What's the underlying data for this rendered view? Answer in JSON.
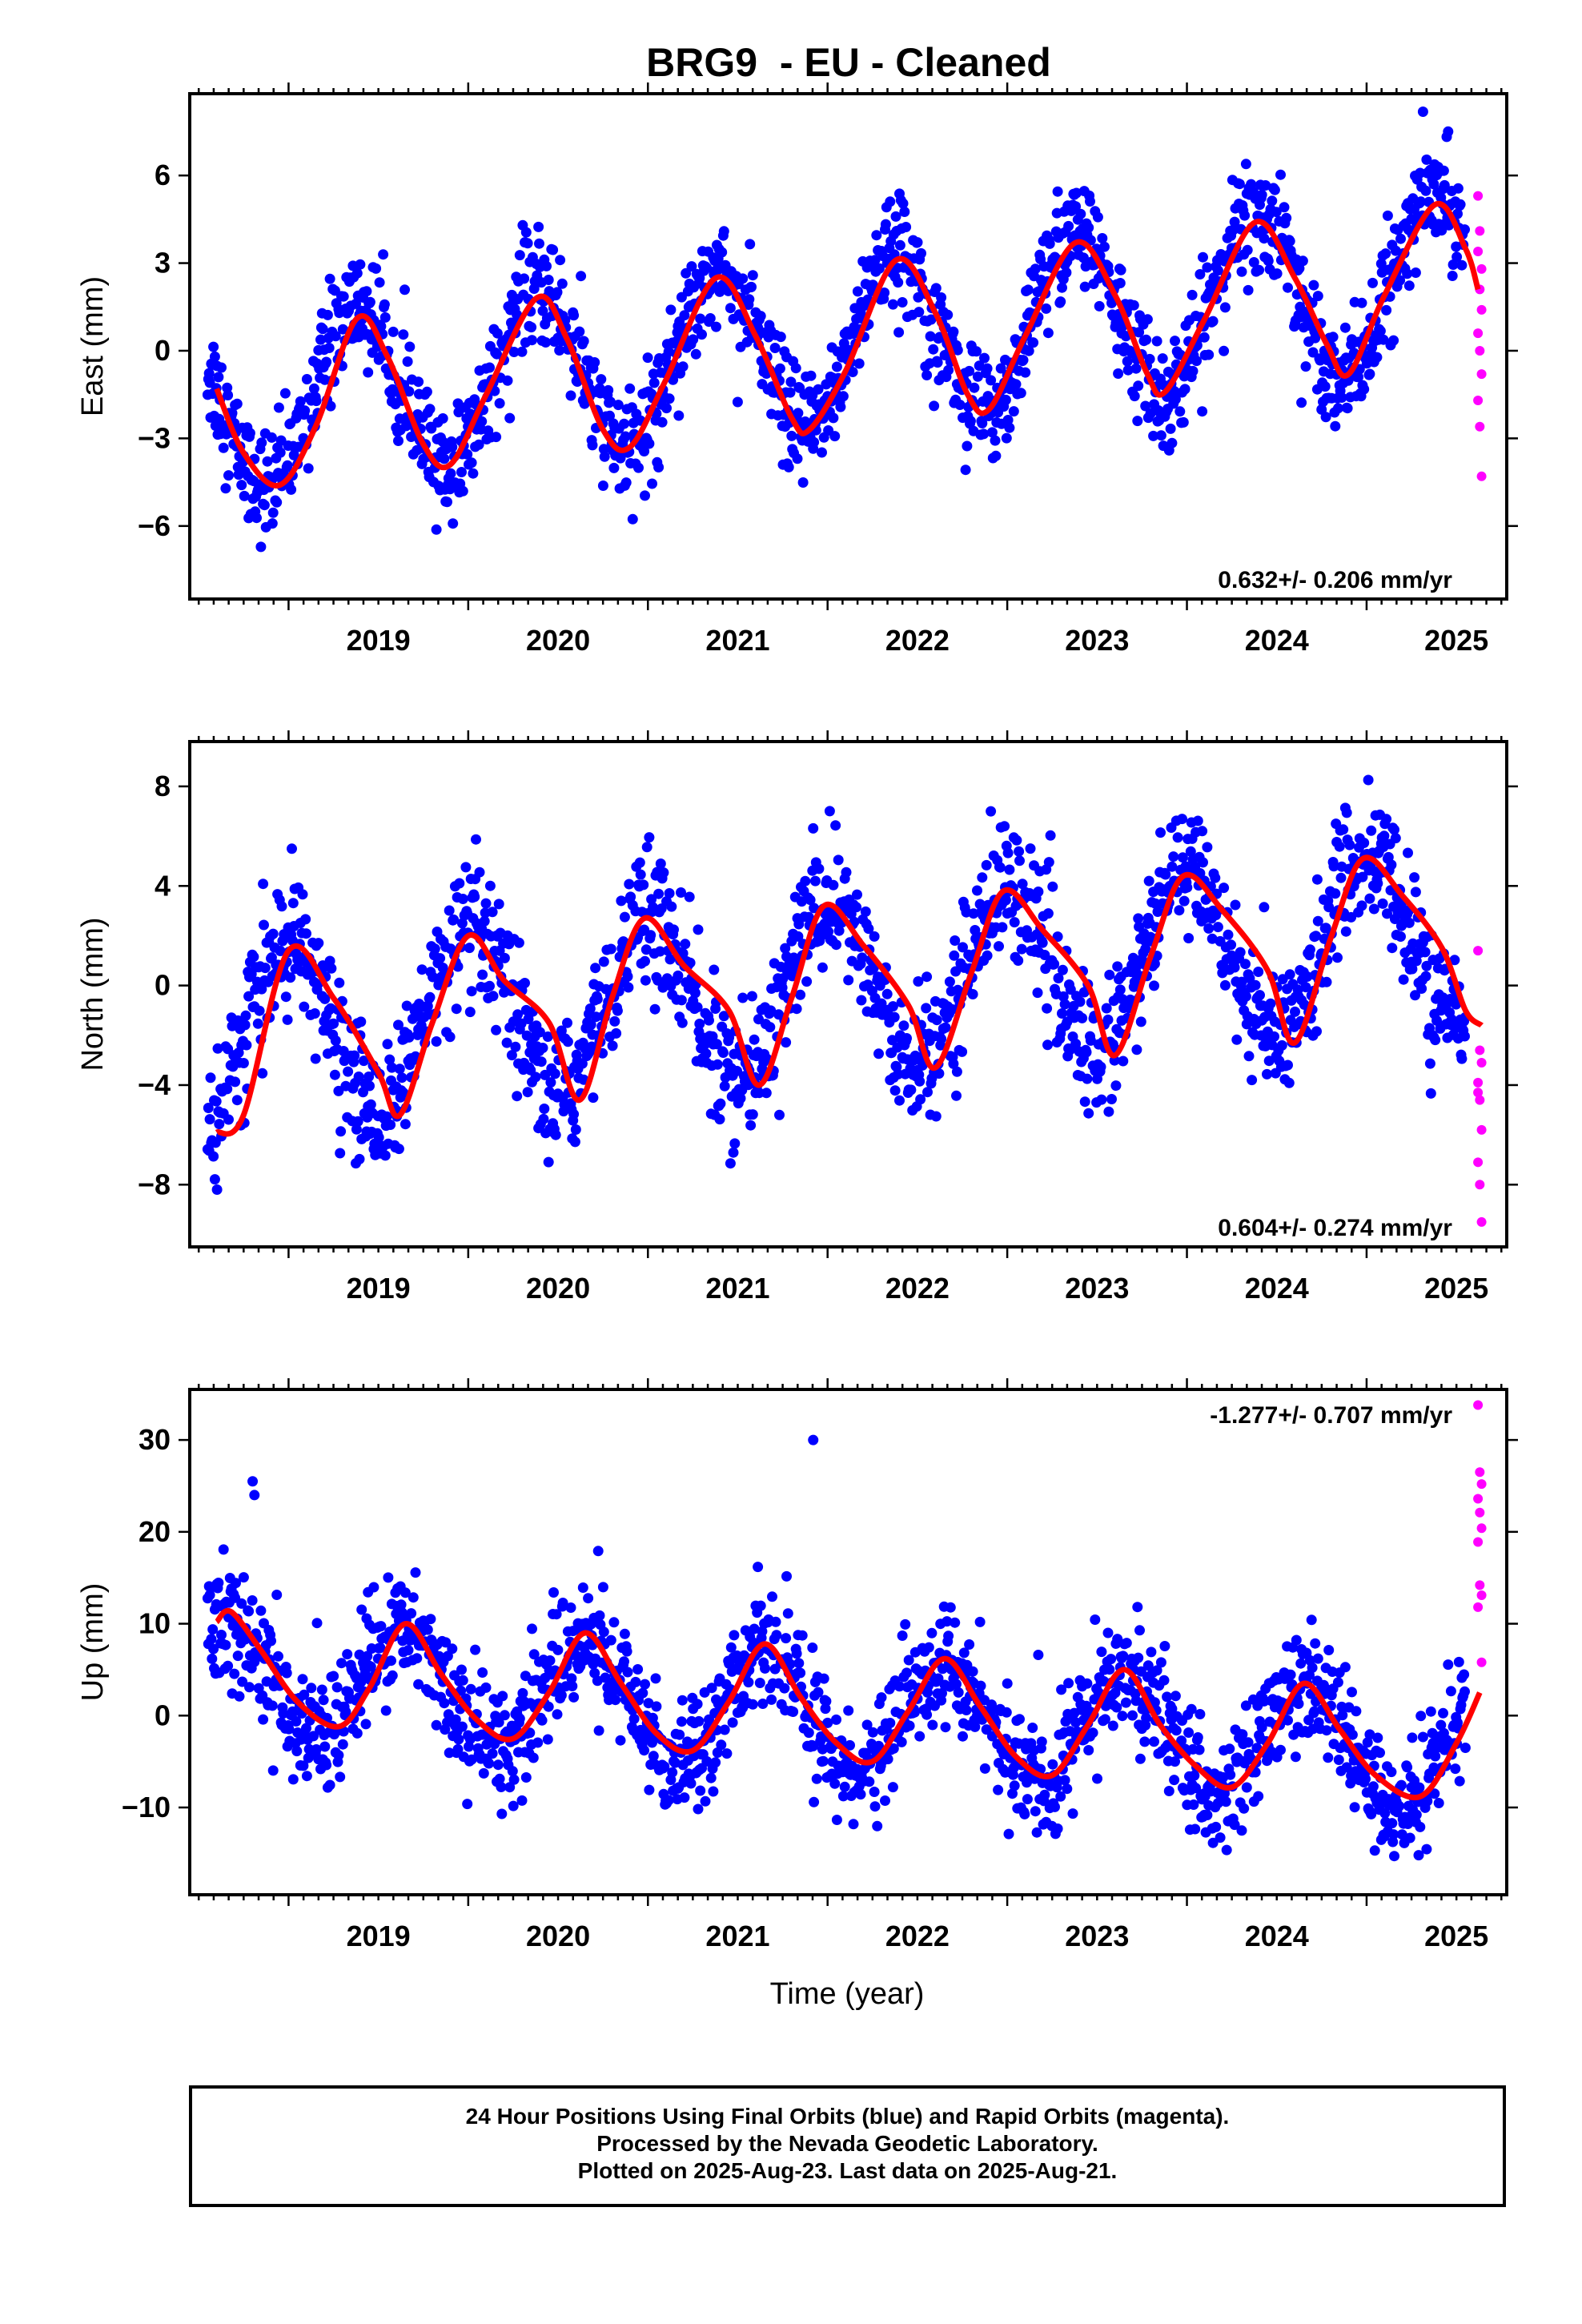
{
  "title": "BRG9  - EU - Cleaned",
  "xlabel": "Time (year)",
  "caption": [
    "24 Hour Positions Using Final Orbits (blue) and Rapid Orbits (magenta).",
    "Processed by the Nevada Geodetic Laboratory.",
    "Plotted on 2025-Aug-23. Last data on 2025-Aug-21."
  ],
  "colors": {
    "final": "#0000ff",
    "rapid": "#ff00ff",
    "model": "#ff0000",
    "axis": "#000000"
  },
  "chart_data": [
    {
      "type": "scatter",
      "panel": "east",
      "ylabel": "East (mm)",
      "xlim": [
        2018.45,
        2025.78
      ],
      "ylim": [
        -8.5,
        8.8
      ],
      "xticks": [
        2019,
        2020,
        2021,
        2022,
        2023,
        2024,
        2025
      ],
      "yticks": [
        -6,
        -3,
        0,
        3,
        6
      ],
      "rate_label": "0.632+/- 0.206 mm/yr",
      "rate_label_pos": "bottom-right",
      "series": [
        {
          "role": "final",
          "seasonal": {
            "amplitude": 2.9,
            "phase_peak": 0.38,
            "offset": -1.95,
            "rate": 0.632,
            "ref_year": 2018.5,
            "scatter_sd": 0.95,
            "start": 2018.55,
            "end": 2025.55,
            "n": 1750
          }
        },
        {
          "role": "rapid",
          "points": [
            [
              2025.62,
              5.3
            ],
            [
              2025.63,
              4.1
            ],
            [
              2025.62,
              3.4
            ],
            [
              2025.64,
              2.8
            ],
            [
              2025.63,
              2.1
            ],
            [
              2025.64,
              1.4
            ],
            [
              2025.62,
              0.6
            ],
            [
              2025.63,
              0.0
            ],
            [
              2025.64,
              -0.8
            ],
            [
              2025.62,
              -1.7
            ],
            [
              2025.63,
              -2.6
            ],
            [
              2025.64,
              -4.3
            ]
          ]
        }
      ],
      "model_curve": [
        [
          2018.6,
          -1.3
        ],
        [
          2018.75,
          -3.5
        ],
        [
          2018.95,
          -4.6
        ],
        [
          2019.15,
          -2.6
        ],
        [
          2019.38,
          1.1
        ],
        [
          2019.55,
          -0.2
        ],
        [
          2019.75,
          -3.2
        ],
        [
          2019.9,
          -3.9
        ],
        [
          2020.1,
          -1.5
        ],
        [
          2020.38,
          1.8
        ],
        [
          2020.55,
          0.4
        ],
        [
          2020.75,
          -2.7
        ],
        [
          2020.9,
          -3.3
        ],
        [
          2021.1,
          -1.0
        ],
        [
          2021.38,
          2.5
        ],
        [
          2021.6,
          0.5
        ],
        [
          2021.8,
          -2.3
        ],
        [
          2021.9,
          -2.7
        ],
        [
          2022.1,
          -0.7
        ],
        [
          2022.38,
          3.1
        ],
        [
          2022.6,
          1.3
        ],
        [
          2022.78,
          -1.5
        ],
        [
          2022.9,
          -2.0
        ],
        [
          2023.1,
          0.5
        ],
        [
          2023.38,
          3.7
        ],
        [
          2023.6,
          1.9
        ],
        [
          2023.78,
          -0.8
        ],
        [
          2023.88,
          -1.4
        ],
        [
          2024.1,
          1.1
        ],
        [
          2024.38,
          4.4
        ],
        [
          2024.6,
          2.5
        ],
        [
          2024.78,
          0.2
        ],
        [
          2024.9,
          -0.8
        ],
        [
          2025.1,
          1.9
        ],
        [
          2025.38,
          5.0
        ],
        [
          2025.55,
          3.5
        ],
        [
          2025.62,
          2.1
        ]
      ]
    },
    {
      "type": "scatter",
      "panel": "north",
      "ylabel": "North (mm)",
      "xlim": [
        2018.45,
        2025.78
      ],
      "ylim": [
        -10.5,
        9.8
      ],
      "xticks": [
        2019,
        2020,
        2021,
        2022,
        2023,
        2024,
        2025
      ],
      "yticks": [
        -8,
        -4,
        0,
        4,
        8
      ],
      "rate_label": "0.604+/- 0.274 mm/yr",
      "rate_label_pos": "bottom-right",
      "series": [
        {
          "role": "final",
          "seasonal": {
            "amplitude": 3.4,
            "phase_peak": 0.0,
            "offset": -2.2,
            "rate": 0.604,
            "ref_year": 2018.5,
            "scatter_sd": 1.35,
            "start": 2018.55,
            "end": 2025.55,
            "n": 1750
          }
        },
        {
          "role": "rapid",
          "points": [
            [
              2025.62,
              1.4
            ],
            [
              2025.63,
              -2.6
            ],
            [
              2025.64,
              -3.1
            ],
            [
              2025.62,
              -3.9
            ],
            [
              2025.63,
              -4.6
            ],
            [
              2025.64,
              -5.8
            ],
            [
              2025.62,
              -7.1
            ],
            [
              2025.63,
              -8.0
            ],
            [
              2025.64,
              -9.5
            ],
            [
              2025.62,
              -4.3
            ]
          ]
        }
      ],
      "model_curve": [
        [
          2018.6,
          -5.9
        ],
        [
          2018.75,
          -5.2
        ],
        [
          2019.0,
          1.4
        ],
        [
          2019.25,
          -0.5
        ],
        [
          2019.5,
          -3.5
        ],
        [
          2019.62,
          -5.2
        ],
        [
          2019.8,
          -1.5
        ],
        [
          2020.0,
          2.0
        ],
        [
          2020.2,
          0.2
        ],
        [
          2020.45,
          -1.5
        ],
        [
          2020.62,
          -4.6
        ],
        [
          2020.8,
          -0.5
        ],
        [
          2020.98,
          2.7
        ],
        [
          2021.2,
          0.8
        ],
        [
          2021.45,
          -1.0
        ],
        [
          2021.62,
          -4.0
        ],
        [
          2021.8,
          -0.5
        ],
        [
          2021.98,
          3.2
        ],
        [
          2022.2,
          1.6
        ],
        [
          2022.45,
          -0.8
        ],
        [
          2022.6,
          -3.3
        ],
        [
          2022.8,
          0.5
        ],
        [
          2022.98,
          3.8
        ],
        [
          2023.2,
          2.2
        ],
        [
          2023.45,
          0.0
        ],
        [
          2023.6,
          -2.8
        ],
        [
          2023.8,
          1.2
        ],
        [
          2023.98,
          4.4
        ],
        [
          2024.2,
          3.0
        ],
        [
          2024.45,
          0.6
        ],
        [
          2024.6,
          -2.3
        ],
        [
          2024.8,
          1.9
        ],
        [
          2024.98,
          5.1
        ],
        [
          2025.2,
          3.6
        ],
        [
          2025.42,
          1.5
        ],
        [
          2025.55,
          -1.0
        ],
        [
          2025.64,
          -1.6
        ]
      ]
    },
    {
      "type": "scatter",
      "panel": "up",
      "ylabel": "Up (mm)",
      "xlim": [
        2018.45,
        2025.78
      ],
      "ylim": [
        -19.5,
        35.5
      ],
      "xticks": [
        2019,
        2020,
        2021,
        2022,
        2023,
        2024,
        2025
      ],
      "yticks": [
        -10,
        0,
        10,
        20,
        30
      ],
      "rate_label": "-1.277+/- 0.707 mm/yr",
      "rate_label_pos": "top-right",
      "series": [
        {
          "role": "final",
          "seasonal": {
            "amplitude": 6.0,
            "phase_peak": 0.65,
            "offset": 4.8,
            "rate": -1.277,
            "ref_year": 2018.5,
            "scatter_sd": 3.2,
            "start": 2018.55,
            "end": 2025.55,
            "n": 1750
          },
          "outliers": [
            [
              2018.8,
              25.5
            ],
            [
              2018.81,
              24.0
            ],
            [
              2021.92,
              30.0
            ]
          ]
        },
        {
          "role": "rapid",
          "points": [
            [
              2025.62,
              33.8
            ],
            [
              2025.63,
              26.5
            ],
            [
              2025.64,
              25.2
            ],
            [
              2025.62,
              23.6
            ],
            [
              2025.63,
              22.1
            ],
            [
              2025.64,
              20.4
            ],
            [
              2025.62,
              18.9
            ],
            [
              2025.63,
              14.2
            ],
            [
              2025.64,
              13.1
            ],
            [
              2025.62,
              11.8
            ],
            [
              2025.64,
              5.8
            ]
          ]
        }
      ],
      "model_curve": [
        [
          2018.6,
          10.2
        ],
        [
          2018.68,
          11.3
        ],
        [
          2018.85,
          7.0
        ],
        [
          2019.05,
          1.5
        ],
        [
          2019.28,
          -1.2
        ],
        [
          2019.45,
          3.0
        ],
        [
          2019.65,
          10.0
        ],
        [
          2019.85,
          4.5
        ],
        [
          2020.05,
          -0.5
        ],
        [
          2020.25,
          -2.5
        ],
        [
          2020.45,
          2.5
        ],
        [
          2020.65,
          9.0
        ],
        [
          2020.85,
          3.5
        ],
        [
          2021.05,
          -2.0
        ],
        [
          2021.25,
          -3.8
        ],
        [
          2021.45,
          1.5
        ],
        [
          2021.65,
          7.8
        ],
        [
          2021.85,
          2.0
        ],
        [
          2022.05,
          -3.0
        ],
        [
          2022.25,
          -5.0
        ],
        [
          2022.45,
          0.5
        ],
        [
          2022.65,
          6.2
        ],
        [
          2022.85,
          1.0
        ],
        [
          2023.05,
          -4.5
        ],
        [
          2023.25,
          -6.5
        ],
        [
          2023.45,
          -1.0
        ],
        [
          2023.65,
          5.0
        ],
        [
          2023.85,
          -1.0
        ],
        [
          2024.05,
          -5.5
        ],
        [
          2024.25,
          -7.8
        ],
        [
          2024.45,
          -3.0
        ],
        [
          2024.65,
          3.5
        ],
        [
          2024.85,
          -1.5
        ],
        [
          2025.05,
          -6.5
        ],
        [
          2025.3,
          -8.8
        ],
        [
          2025.5,
          -3.0
        ],
        [
          2025.63,
          2.5
        ]
      ]
    }
  ]
}
